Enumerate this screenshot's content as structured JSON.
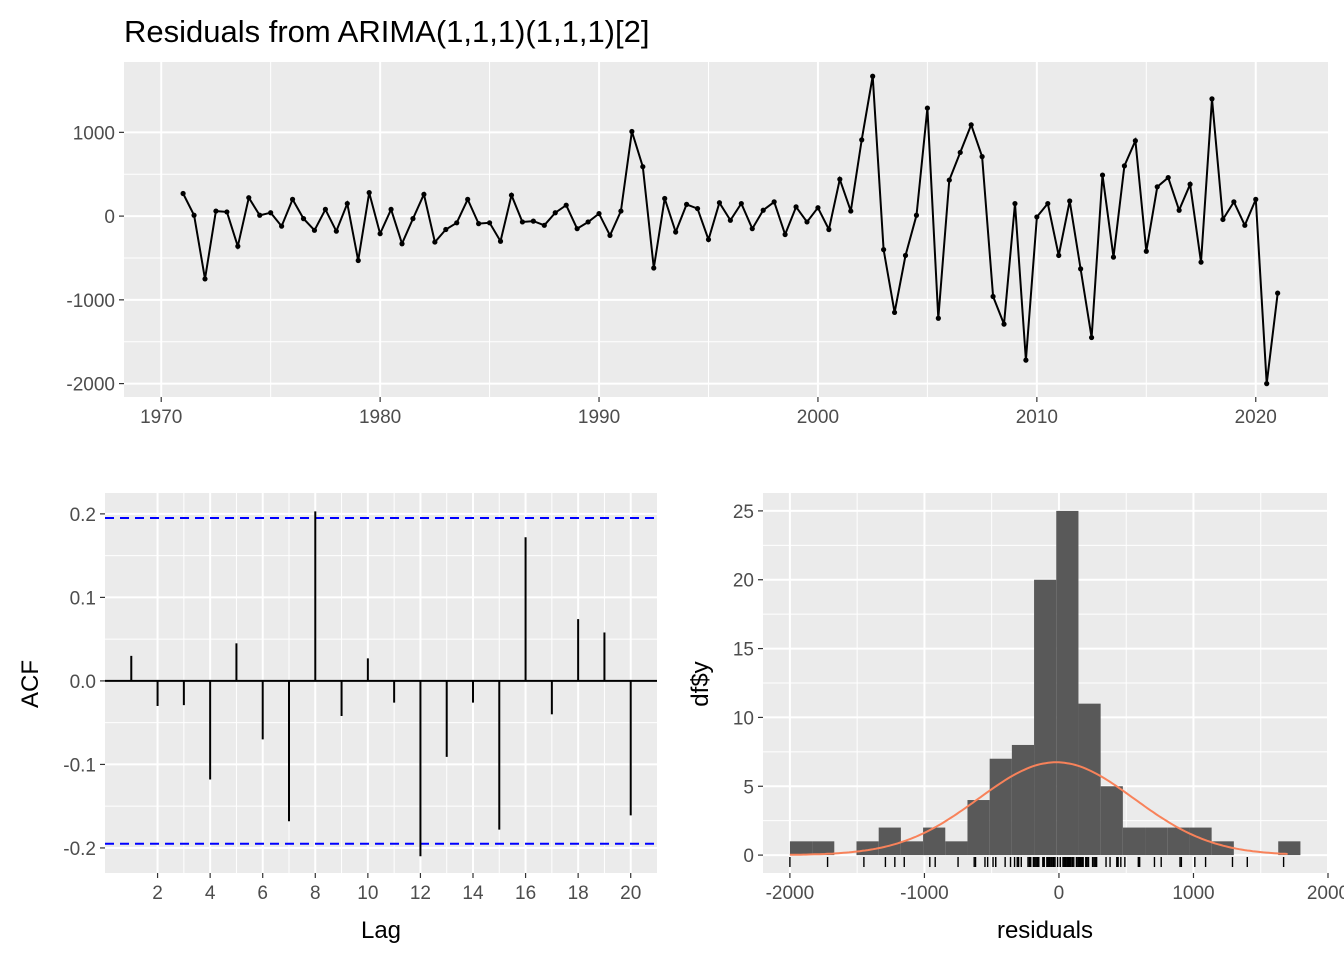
{
  "chart_data": [
    {
      "type": "line",
      "title": "Residuals from ARIMA(1,1,1)(1,1,1)[2]",
      "xlim": [
        1968.3,
        2023.3
      ],
      "ylim": [
        -2160,
        1840
      ],
      "x_ticks": [
        1970,
        1980,
        1990,
        2000,
        2010,
        2020
      ],
      "x_tick_labels": [
        "1970",
        "1980",
        "1990",
        "2000",
        "2010",
        "2020"
      ],
      "y_ticks": [
        1000,
        0,
        -1000,
        -2000
      ],
      "y_tick_labels": [
        "1000",
        "0",
        "-1000",
        "-2000"
      ],
      "grid": true,
      "x": [
        1971.0,
        1971.5,
        1972.0,
        1972.5,
        1973.0,
        1973.5,
        1974.0,
        1974.5,
        1975.0,
        1975.5,
        1976.0,
        1976.5,
        1977.0,
        1977.5,
        1978.0,
        1978.5,
        1979.0,
        1979.5,
        1980.0,
        1980.5,
        1981.0,
        1981.5,
        1982.0,
        1982.5,
        1983.0,
        1983.5,
        1984.0,
        1984.5,
        1985.0,
        1985.5,
        1986.0,
        1986.5,
        1987.0,
        1987.5,
        1988.0,
        1988.5,
        1989.0,
        1989.5,
        1990.0,
        1990.5,
        1991.0,
        1991.5,
        1992.0,
        1992.5,
        1993.0,
        1993.5,
        1994.0,
        1994.5,
        1995.0,
        1995.5,
        1996.0,
        1996.5,
        1997.0,
        1997.5,
        1998.0,
        1998.5,
        1999.0,
        1999.5,
        2000.0,
        2000.5,
        2001.0,
        2001.5,
        2002.0,
        2002.5,
        2003.0,
        2003.5,
        2004.0,
        2004.5,
        2005.0,
        2005.5,
        2006.0,
        2006.5,
        2007.0,
        2007.5,
        2008.0,
        2008.5,
        2009.0,
        2009.5,
        2010.0,
        2010.5,
        2011.0,
        2011.5,
        2012.0,
        2012.5,
        2013.0,
        2013.5,
        2014.0,
        2014.5,
        2015.0,
        2015.5,
        2016.0,
        2016.5,
        2017.0,
        2017.5,
        2018.0,
        2018.5,
        2019.0,
        2019.5,
        2020.0,
        2020.5,
        2021.0
      ],
      "values": [
        270,
        10,
        -750,
        60,
        50,
        -360,
        220,
        10,
        40,
        -120,
        200,
        -30,
        -170,
        80,
        -180,
        150,
        -530,
        280,
        -210,
        80,
        -330,
        -30,
        260,
        -310,
        -160,
        -80,
        200,
        -90,
        -80,
        -300,
        250,
        -70,
        -60,
        -110,
        40,
        130,
        -150,
        -70,
        30,
        -230,
        60,
        1010,
        590,
        -620,
        210,
        -190,
        140,
        90,
        -280,
        160,
        -50,
        150,
        -150,
        70,
        170,
        -220,
        110,
        -70,
        100,
        -160,
        440,
        60,
        910,
        1670,
        -400,
        -1150,
        -470,
        10,
        1290,
        -1220,
        430,
        760,
        1090,
        710,
        -960,
        -1290,
        150,
        -1720,
        -10,
        150,
        -470,
        180,
        -630,
        -1450,
        490,
        -490,
        600,
        900,
        -420,
        350,
        460,
        70,
        380,
        -550,
        1400,
        -40,
        170,
        -110,
        200,
        -2000,
        -920
      ]
    },
    {
      "type": "bar",
      "xlabel": "Lag",
      "ylabel": "ACF",
      "xlim": [
        0,
        21
      ],
      "ylim": [
        -0.23,
        0.225
      ],
      "x_ticks": [
        2,
        4,
        6,
        8,
        10,
        12,
        14,
        16,
        18,
        20
      ],
      "x_tick_labels": [
        "2",
        "4",
        "6",
        "8",
        "10",
        "12",
        "14",
        "16",
        "18",
        "20"
      ],
      "y_ticks": [
        0.2,
        0.1,
        0.0,
        -0.1,
        -0.2
      ],
      "y_tick_labels": [
        "0.2",
        "0.1",
        "0.0",
        "-0.1",
        "-0.2"
      ],
      "categories": [
        1,
        2,
        3,
        4,
        5,
        6,
        7,
        8,
        9,
        10,
        11,
        12,
        13,
        14,
        15,
        16,
        17,
        18,
        19,
        20
      ],
      "values": [
        0.03,
        -0.03,
        -0.029,
        -0.118,
        0.045,
        -0.07,
        -0.168,
        0.203,
        -0.042,
        0.027,
        -0.026,
        -0.21,
        -0.091,
        -0.026,
        -0.178,
        0.172,
        -0.04,
        0.074,
        0.058,
        -0.161
      ],
      "confidence_bounds": [
        0.195,
        -0.195
      ],
      "bound_color": "#0000ff",
      "grid": true
    },
    {
      "type": "bar",
      "xlabel": "residuals",
      "ylabel": "df$y",
      "xlim": [
        -2200,
        2000
      ],
      "ylim": [
        -1.3,
        26.3
      ],
      "x_ticks": [
        -2000,
        -1000,
        0,
        1000,
        2000
      ],
      "x_tick_labels": [
        "-2000",
        "-1000",
        "0",
        "1000",
        "2000"
      ],
      "y_ticks": [
        25,
        20,
        15,
        10,
        5,
        0
      ],
      "y_tick_labels": [
        "25",
        "20",
        "15",
        "10",
        "5",
        "0"
      ],
      "bins": [
        -2000,
        -1835,
        -1670,
        -1505,
        -1340,
        -1175,
        -1010,
        -845,
        -680,
        -515,
        -350,
        -185,
        -20,
        145,
        310,
        475,
        640,
        805,
        970,
        1135,
        1300,
        1465,
        1630,
        1795
      ],
      "counts": [
        1,
        1,
        0,
        1,
        2,
        1,
        2,
        1,
        4,
        7,
        8,
        20,
        25,
        11,
        5,
        2,
        2,
        2,
        2,
        1,
        0,
        0,
        1
      ],
      "bar_color": "#595959",
      "density_curve": {
        "mean": -20,
        "sd": 580,
        "scale": 16.9,
        "color": "#f8825a"
      },
      "rug": [
        -2000,
        -1720,
        -1450,
        -1290,
        -1220,
        -1150,
        -960,
        -920,
        -750,
        -630,
        -620,
        -550,
        -530,
        -490,
        -470,
        -470,
        -400,
        -360,
        -330,
        -310,
        -300,
        -280,
        -230,
        -220,
        -210,
        -190,
        -180,
        -170,
        -160,
        -160,
        -150,
        -150,
        -120,
        -110,
        -110,
        -90,
        -80,
        -80,
        -70,
        -70,
        -60,
        -50,
        -40,
        -30,
        -30,
        -10,
        10,
        10,
        10,
        30,
        40,
        40,
        50,
        60,
        60,
        60,
        70,
        70,
        80,
        80,
        90,
        100,
        110,
        130,
        140,
        150,
        150,
        150,
        150,
        160,
        170,
        170,
        180,
        200,
        200,
        210,
        220,
        250,
        260,
        270,
        280,
        350,
        380,
        430,
        440,
        460,
        490,
        590,
        600,
        710,
        760,
        900,
        910,
        1010,
        1090,
        1290,
        1400,
        1670
      ],
      "grid": true
    }
  ]
}
